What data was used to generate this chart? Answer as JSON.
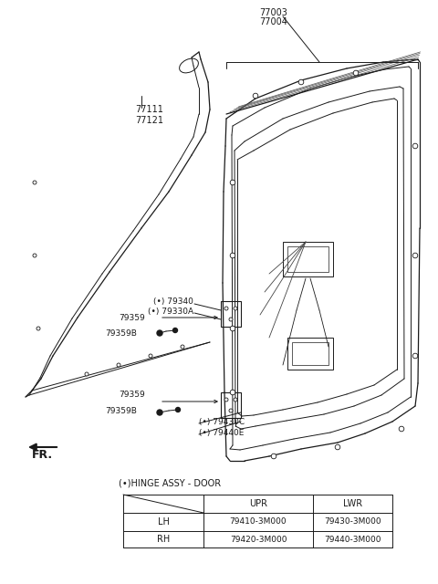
{
  "bg_color": "#ffffff",
  "label_77003": "77003",
  "label_77004": "77004",
  "label_77111": "77111",
  "label_77121": "77121",
  "label_79340": "(•) 79340",
  "label_79330A": "(•) 79330A",
  "label_79359_u": "79359",
  "label_79359B_u": "79359B",
  "label_79359_l": "79359",
  "label_79359B_l": "79359B",
  "label_79430C": "(•) 79430C",
  "label_79440E": "(•) 79440E",
  "label_fr": "FR.",
  "table_title": "(•)HINGE ASSY - DOOR",
  "col_headers": [
    "",
    "UPR",
    "LWR"
  ],
  "row_headers": [
    "LH",
    "RH"
  ],
  "table_data": [
    [
      "79410-3M000",
      "79430-3M000"
    ],
    [
      "79420-3M000",
      "79440-3M000"
    ]
  ]
}
